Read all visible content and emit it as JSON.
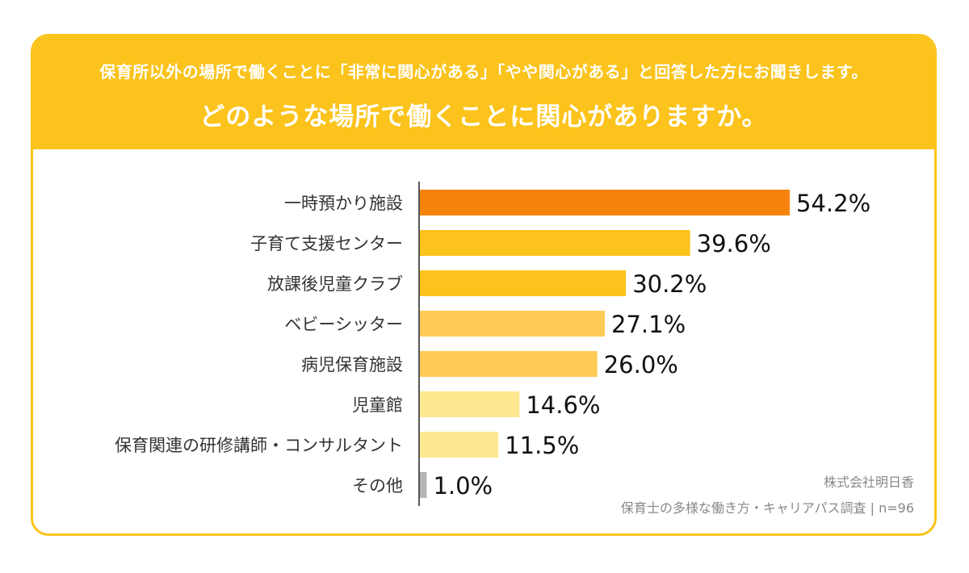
{
  "header": {
    "subquestion": "保育所以外の場所で働くことに「非常に関心がある」「やや関心がある」と回答した方にお聞きします。",
    "question": "どのような場所で働くことに関心がありますか。"
  },
  "source": {
    "company": "株式会社明日香",
    "survey": "保育士の多様な働き方・キャリアパス調査 | n=96"
  },
  "colors": {
    "header": "#fbc31b",
    "border": "#fbc31b",
    "text": "#333333"
  },
  "chart_data": {
    "type": "bar",
    "orientation": "horizontal",
    "unit": "%",
    "categories": [
      "一時預かり施設",
      "子育て支援センター",
      "放課後児童クラブ",
      "ベビーシッター",
      "病児保育施設",
      "児童館",
      "保育関連の研修講師・コンサルタント",
      "その他"
    ],
    "values": [
      54.2,
      39.6,
      30.2,
      27.1,
      26.0,
      14.6,
      11.5,
      1.0
    ],
    "value_labels": [
      "54.2%",
      "39.6%",
      "30.2%",
      "27.1%",
      "26.0%",
      "14.6%",
      "11.5%",
      "1.0%"
    ],
    "bar_colors": [
      "#f7830f",
      "#fbc31b",
      "#fbc31b",
      "#fdcb55",
      "#fdcb55",
      "#fde88f",
      "#fde88f",
      "#b5b5b5"
    ],
    "xlim": [
      0,
      54.2
    ],
    "grid": false,
    "legend": "none"
  }
}
